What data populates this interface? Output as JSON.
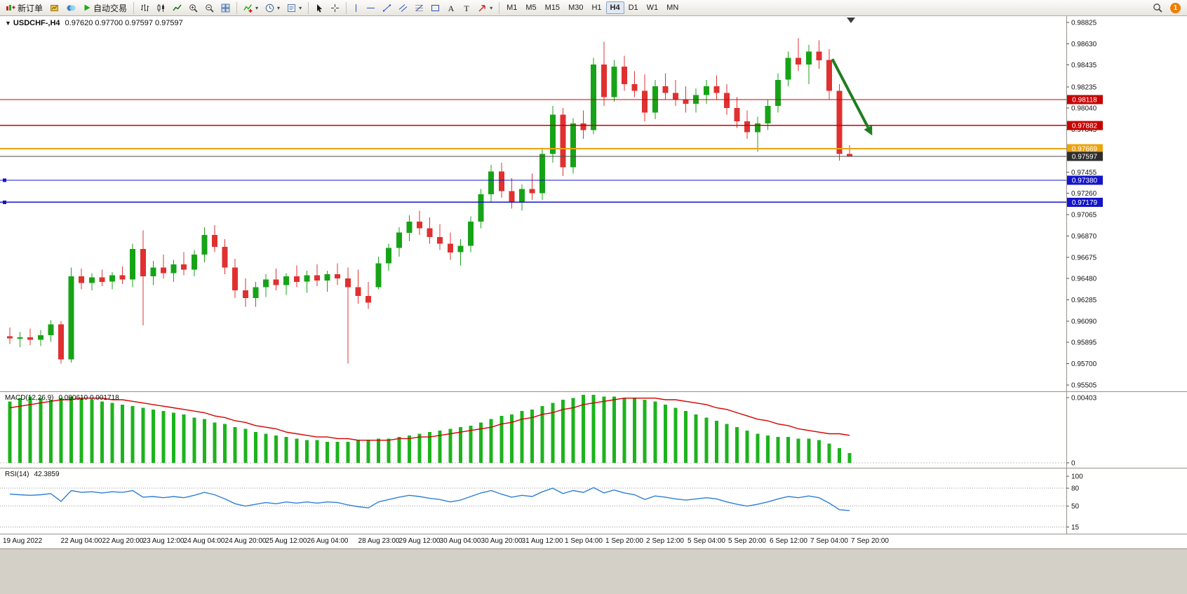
{
  "toolbar": {
    "groups": [
      {
        "name": "trade",
        "items": [
          {
            "name": "new-order-button",
            "icon": "new-order-icon",
            "label": "新订单"
          },
          {
            "name": "new-chart-button",
            "icon": "new-chart-icon"
          },
          {
            "name": "profiles-button",
            "icon": "profiles-icon"
          },
          {
            "name": "autotrading-button",
            "icon": "autotrading-icon",
            "label": "自动交易"
          }
        ]
      },
      {
        "name": "chart-type",
        "items": [
          {
            "name": "bar-chart-button",
            "icon": "bars-icon"
          },
          {
            "name": "candlestick-chart-button",
            "icon": "candles-icon"
          },
          {
            "name": "line-chart-button",
            "icon": "line-chart-icon"
          },
          {
            "name": "zoom-in-button",
            "icon": "zoom-in-icon"
          },
          {
            "name": "zoom-out-button",
            "icon": "zoom-out-icon"
          },
          {
            "name": "tile-windows-button",
            "icon": "tile-icon"
          }
        ]
      },
      {
        "name": "objects",
        "items": [
          {
            "name": "indicators-button",
            "icon": "indicators-icon",
            "dropdown": true
          },
          {
            "name": "periods-button",
            "icon": "clock-icon",
            "dropdown": true
          },
          {
            "name": "templates-button",
            "icon": "template-icon",
            "dropdown": true
          }
        ]
      },
      {
        "name": "cursor",
        "items": [
          {
            "name": "cursor-button",
            "icon": "cursor-icon"
          },
          {
            "name": "crosshair-button",
            "icon": "crosshair-icon"
          }
        ]
      },
      {
        "name": "drawing",
        "items": [
          {
            "name": "vertical-line-button",
            "icon": "vline-icon"
          },
          {
            "name": "horizontal-line-button",
            "icon": "hline-icon"
          },
          {
            "name": "trendline-button",
            "icon": "trendline-icon"
          },
          {
            "name": "channel-button",
            "icon": "channel-icon"
          },
          {
            "name": "fibonacci-button",
            "icon": "fibo-icon"
          },
          {
            "name": "shapes-button",
            "icon": "shapes-icon"
          },
          {
            "name": "text-button",
            "icon": "text-icon"
          },
          {
            "name": "label-button",
            "icon": "label-icon"
          },
          {
            "name": "arrows-button",
            "icon": "arrows-icon",
            "dropdown": true
          }
        ]
      }
    ],
    "timeframes": [
      {
        "name": "tf-button-m1",
        "label": "M1"
      },
      {
        "name": "tf-button-m5",
        "label": "M5"
      },
      {
        "name": "tf-button-m15",
        "label": "M15"
      },
      {
        "name": "tf-button-m30",
        "label": "M30"
      },
      {
        "name": "tf-button-h1",
        "label": "H1"
      },
      {
        "name": "tf-button-h4",
        "label": "H4",
        "active": true
      },
      {
        "name": "tf-button-d1",
        "label": "D1"
      },
      {
        "name": "tf-button-w1",
        "label": "W1"
      },
      {
        "name": "tf-button-mn",
        "label": "MN"
      }
    ],
    "right": [
      {
        "name": "search-button",
        "icon": "search-icon"
      },
      {
        "name": "notification-badge",
        "badge": "1"
      }
    ]
  },
  "chart_header": {
    "collapse_icon": "▼",
    "symbol": "USDCHF-,H4",
    "ohlc": "0.97620 0.97700 0.97597 0.97597"
  },
  "colors": {
    "up": "#17a317",
    "down": "#e03030",
    "macd_bar": "#1db31d",
    "macd_signal": "#d40000",
    "rsi": "#2e7fd4"
  },
  "chart_data": [
    {
      "type": "candlestick",
      "title": "USDCHF-,H4",
      "price_axis": {
        "min": 0.95453,
        "max": 0.98883,
        "labels": [
          "0.98825",
          "0.98630",
          "0.98435",
          "0.98235",
          "0.98040",
          "0.97845",
          "0.97455",
          "0.97260",
          "0.97065",
          "0.96870",
          "0.96675",
          "0.96480",
          "0.96285",
          "0.96090",
          "0.95895",
          "0.95700",
          "0.95505"
        ]
      },
      "hlines": [
        {
          "price": 0.98118,
          "label": "0.98118",
          "color": "#c80000",
          "width": 1.2
        },
        {
          "price": 0.97882,
          "label": "0.97882",
          "color": "#c80000",
          "width": 1.2
        },
        {
          "price": 0.97669,
          "label": "0.97669",
          "color": "#eca410",
          "width": 2
        },
        {
          "price": 0.97597,
          "label": "0.97597",
          "color": "#4a4a4a",
          "badge": "#2e2e2e",
          "width": 1,
          "role": "current-price"
        },
        {
          "price": 0.9738,
          "label": "0.97380",
          "color": "#1414c8",
          "width": 1.2,
          "handle": true
        },
        {
          "price": 0.97179,
          "label": "0.97179",
          "color": "#1414c8",
          "width": 1.2,
          "handle": true
        }
      ],
      "ohlc": [
        [
          0.9595,
          0.9603,
          0.9588,
          0.9593
        ],
        [
          0.9593,
          0.9599,
          0.9585,
          0.9594
        ],
        [
          0.9594,
          0.9602,
          0.9587,
          0.9592
        ],
        [
          0.9592,
          0.9601,
          0.9586,
          0.9596
        ],
        [
          0.9596,
          0.961,
          0.959,
          0.9606
        ],
        [
          0.9606,
          0.9609,
          0.957,
          0.9574
        ],
        [
          0.9574,
          0.9658,
          0.9571,
          0.965
        ],
        [
          0.965,
          0.9657,
          0.9638,
          0.9644
        ],
        [
          0.9644,
          0.9653,
          0.9637,
          0.9649
        ],
        [
          0.9649,
          0.9656,
          0.9641,
          0.9645
        ],
        [
          0.9645,
          0.9654,
          0.9638,
          0.9651
        ],
        [
          0.9651,
          0.9659,
          0.9643,
          0.9647
        ],
        [
          0.9647,
          0.968,
          0.964,
          0.9675
        ],
        [
          0.9675,
          0.9692,
          0.9605,
          0.965
        ],
        [
          0.965,
          0.9664,
          0.9642,
          0.9658
        ],
        [
          0.9658,
          0.967,
          0.9648,
          0.9653
        ],
        [
          0.9653,
          0.9665,
          0.9645,
          0.9661
        ],
        [
          0.9661,
          0.9672,
          0.9651,
          0.9656
        ],
        [
          0.9656,
          0.9674,
          0.965,
          0.967
        ],
        [
          0.967,
          0.9695,
          0.9663,
          0.9688
        ],
        [
          0.9688,
          0.9697,
          0.9672,
          0.9677
        ],
        [
          0.9677,
          0.9684,
          0.9652,
          0.9658
        ],
        [
          0.9658,
          0.9666,
          0.963,
          0.9637
        ],
        [
          0.9637,
          0.9648,
          0.9622,
          0.963
        ],
        [
          0.963,
          0.9645,
          0.9622,
          0.964
        ],
        [
          0.964,
          0.9652,
          0.9631,
          0.9647
        ],
        [
          0.9647,
          0.9657,
          0.9637,
          0.9642
        ],
        [
          0.9642,
          0.9653,
          0.9633,
          0.965
        ],
        [
          0.965,
          0.966,
          0.964,
          0.9645
        ],
        [
          0.9645,
          0.9655,
          0.9635,
          0.9651
        ],
        [
          0.9651,
          0.9661,
          0.9641,
          0.9646
        ],
        [
          0.9646,
          0.9655,
          0.9636,
          0.9652
        ],
        [
          0.9652,
          0.9662,
          0.9642,
          0.9648
        ],
        [
          0.9648,
          0.9658,
          0.957,
          0.964
        ],
        [
          0.964,
          0.9656,
          0.9625,
          0.9632
        ],
        [
          0.9632,
          0.9645,
          0.962,
          0.9626
        ],
        [
          0.964,
          0.9668,
          0.9638,
          0.9662
        ],
        [
          0.9662,
          0.968,
          0.9655,
          0.9676
        ],
        [
          0.9676,
          0.9695,
          0.9668,
          0.969
        ],
        [
          0.969,
          0.9706,
          0.9682,
          0.97
        ],
        [
          0.97,
          0.971,
          0.9688,
          0.9694
        ],
        [
          0.9694,
          0.9704,
          0.968,
          0.9686
        ],
        [
          0.9686,
          0.9698,
          0.9674,
          0.968
        ],
        [
          0.968,
          0.969,
          0.9665,
          0.9672
        ],
        [
          0.9672,
          0.9684,
          0.966,
          0.9678
        ],
        [
          0.9678,
          0.9705,
          0.9672,
          0.97
        ],
        [
          0.97,
          0.973,
          0.9694,
          0.9725
        ],
        [
          0.9725,
          0.9752,
          0.9718,
          0.9746
        ],
        [
          0.9746,
          0.9754,
          0.9722,
          0.9728
        ],
        [
          0.9728,
          0.974,
          0.9712,
          0.9718
        ],
        [
          0.9718,
          0.9734,
          0.971,
          0.973
        ],
        [
          0.973,
          0.9744,
          0.972,
          0.9726
        ],
        [
          0.9726,
          0.9768,
          0.972,
          0.9762
        ],
        [
          0.9762,
          0.9806,
          0.9754,
          0.9798
        ],
        [
          0.9798,
          0.9804,
          0.9742,
          0.975
        ],
        [
          0.975,
          0.9795,
          0.9744,
          0.979
        ],
        [
          0.979,
          0.9802,
          0.9776,
          0.9784
        ],
        [
          0.9784,
          0.985,
          0.978,
          0.9844
        ],
        [
          0.9844,
          0.9865,
          0.9806,
          0.9814
        ],
        [
          0.9814,
          0.9848,
          0.981,
          0.9842
        ],
        [
          0.9842,
          0.9852,
          0.982,
          0.9826
        ],
        [
          0.9826,
          0.9838,
          0.9814,
          0.982
        ],
        [
          0.982,
          0.9835,
          0.9792,
          0.98
        ],
        [
          0.98,
          0.983,
          0.9794,
          0.9824
        ],
        [
          0.9824,
          0.9836,
          0.9812,
          0.9818
        ],
        [
          0.9818,
          0.983,
          0.9806,
          0.9812
        ],
        [
          0.9812,
          0.9824,
          0.98,
          0.9808
        ],
        [
          0.9808,
          0.9822,
          0.98,
          0.9816
        ],
        [
          0.9816,
          0.983,
          0.9808,
          0.9824
        ],
        [
          0.9824,
          0.9834,
          0.9812,
          0.9818
        ],
        [
          0.9818,
          0.9826,
          0.9798,
          0.9804
        ],
        [
          0.9804,
          0.9814,
          0.9786,
          0.9792
        ],
        [
          0.9792,
          0.9802,
          0.9776,
          0.9782
        ],
        [
          0.9782,
          0.9796,
          0.9764,
          0.979
        ],
        [
          0.979,
          0.9812,
          0.9784,
          0.9806
        ],
        [
          0.9806,
          0.9836,
          0.98,
          0.983
        ],
        [
          0.983,
          0.9856,
          0.9824,
          0.985
        ],
        [
          0.985,
          0.9868,
          0.9838,
          0.9844
        ],
        [
          0.9844,
          0.9862,
          0.9826,
          0.9856
        ],
        [
          0.9856,
          0.9866,
          0.984,
          0.9848
        ],
        [
          0.9848,
          0.9858,
          0.9812,
          0.982
        ],
        [
          0.982,
          0.9826,
          0.9756,
          0.9762
        ],
        [
          0.9762,
          0.977,
          0.97597,
          0.97597
        ]
      ],
      "time_labels": [
        {
          "i": 0,
          "t": "19 Aug 2022"
        },
        {
          "i": 7,
          "t": "22 Aug 04:00"
        },
        {
          "i": 11,
          "t": "22 Aug 20:00"
        },
        {
          "i": 15,
          "t": "23 Aug 12:00"
        },
        {
          "i": 19,
          "t": "24 Aug 04:00"
        },
        {
          "i": 23,
          "t": "24 Aug 20:00"
        },
        {
          "i": 27,
          "t": "25 Aug 12:00"
        },
        {
          "i": 31,
          "t": "26 Aug 04:00"
        },
        {
          "i": 36,
          "t": "28 Aug 23:00"
        },
        {
          "i": 40,
          "t": "29 Aug 12:00"
        },
        {
          "i": 44,
          "t": "30 Aug 04:00"
        },
        {
          "i": 48,
          "t": "30 Aug 20:00"
        },
        {
          "i": 52,
          "t": "31 Aug 12:00"
        },
        {
          "i": 56,
          "t": "1 Sep 04:00"
        },
        {
          "i": 60,
          "t": "1 Sep 20:00"
        },
        {
          "i": 64,
          "t": "2 Sep 12:00"
        },
        {
          "i": 68,
          "t": "5 Sep 04:00"
        },
        {
          "i": 72,
          "t": "5 Sep 20:00"
        },
        {
          "i": 76,
          "t": "6 Sep 12:00"
        },
        {
          "i": 80,
          "t": "7 Sep 04:00"
        },
        {
          "i": 84,
          "t": "7 Sep 20:00"
        }
      ],
      "annotation_arrow": {
        "i1": 80.3,
        "p1": 0.9849,
        "i2": 84.2,
        "p2": 0.9779,
        "color": "#1e7d1e"
      }
    },
    {
      "type": "bar",
      "name": "MACD(12,26,9)",
      "values_label": "0.000610 0.001718",
      "axis": {
        "max": 0.00403,
        "max_label": "0.00403",
        "zero_label": "0"
      },
      "histogram": [
        0.0038,
        0.004,
        0.0041,
        0.004,
        0.0039,
        0.004,
        0.0041,
        0.004,
        0.0039,
        0.0038,
        0.0037,
        0.0036,
        0.0035,
        0.0034,
        0.0033,
        0.0032,
        0.0031,
        0.003,
        0.0028,
        0.0027,
        0.0025,
        0.0024,
        0.0022,
        0.0021,
        0.0019,
        0.0018,
        0.0017,
        0.0016,
        0.0015,
        0.0014,
        0.0014,
        0.0013,
        0.0013,
        0.0013,
        0.0014,
        0.0014,
        0.0015,
        0.0015,
        0.0016,
        0.0017,
        0.0018,
        0.0019,
        0.002,
        0.0021,
        0.0022,
        0.0023,
        0.0025,
        0.0027,
        0.0029,
        0.003,
        0.0032,
        0.0033,
        0.0035,
        0.0037,
        0.0039,
        0.004,
        0.0042,
        0.0042,
        0.0041,
        0.0041,
        0.004,
        0.004,
        0.0039,
        0.0038,
        0.0036,
        0.0034,
        0.0032,
        0.003,
        0.0028,
        0.0026,
        0.0024,
        0.0022,
        0.002,
        0.0018,
        0.0017,
        0.0016,
        0.0016,
        0.0015,
        0.0015,
        0.0014,
        0.0012,
        0.0009,
        0.0006
      ],
      "signal": [
        0.0034,
        0.0035,
        0.0036,
        0.0037,
        0.0038,
        0.0039,
        0.0039,
        0.004,
        0.004,
        0.004,
        0.0039,
        0.0039,
        0.0038,
        0.0037,
        0.0036,
        0.0035,
        0.0034,
        0.0033,
        0.0032,
        0.0031,
        0.0029,
        0.0028,
        0.0026,
        0.0025,
        0.0023,
        0.0022,
        0.0021,
        0.0019,
        0.0018,
        0.0017,
        0.0016,
        0.0016,
        0.0015,
        0.0015,
        0.0014,
        0.0014,
        0.0014,
        0.0014,
        0.0015,
        0.0015,
        0.0016,
        0.0016,
        0.0017,
        0.0018,
        0.0019,
        0.002,
        0.0021,
        0.0022,
        0.0024,
        0.0025,
        0.0027,
        0.0028,
        0.003,
        0.0031,
        0.0033,
        0.0034,
        0.0036,
        0.0037,
        0.0038,
        0.0039,
        0.004,
        0.004,
        0.004,
        0.004,
        0.0039,
        0.0039,
        0.0038,
        0.0037,
        0.0036,
        0.0034,
        0.0033,
        0.0031,
        0.0029,
        0.0027,
        0.0026,
        0.0024,
        0.0023,
        0.0021,
        0.002,
        0.0019,
        0.0018,
        0.0018,
        0.0017
      ]
    },
    {
      "type": "line",
      "name": "RSI(14)",
      "value_label": "42.3859",
      "range": [
        113,
        5
      ],
      "levels": [
        80,
        50,
        15
      ],
      "scale_labels": [
        {
          "v": 100,
          "t": "100"
        },
        {
          "v": 80,
          "t": "80"
        },
        {
          "v": 50,
          "t": "50"
        },
        {
          "v": 15,
          "t": "15"
        }
      ],
      "values": [
        70,
        69,
        68,
        69,
        71,
        58,
        76,
        73,
        74,
        72,
        74,
        73,
        76,
        65,
        66,
        64,
        66,
        64,
        68,
        73,
        69,
        62,
        54,
        50,
        53,
        56,
        54,
        57,
        55,
        57,
        55,
        57,
        56,
        52,
        49,
        47,
        57,
        61,
        65,
        68,
        66,
        63,
        61,
        57,
        60,
        66,
        72,
        76,
        70,
        65,
        68,
        66,
        74,
        80,
        71,
        76,
        73,
        81,
        72,
        77,
        72,
        69,
        61,
        67,
        65,
        62,
        60,
        62,
        64,
        62,
        57,
        53,
        50,
        53,
        57,
        62,
        66,
        64,
        67,
        64,
        55,
        44,
        42.39
      ]
    }
  ]
}
